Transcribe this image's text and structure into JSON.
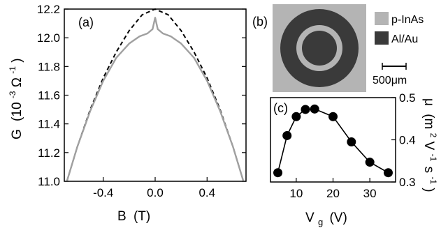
{
  "chart_data": [
    {
      "panel": "(a)",
      "type": "line",
      "xlabel": {
        "main": "B",
        "unit": "(T)"
      },
      "ylabel": {
        "main": "G",
        "unit_pre": "(10",
        "unit_exp": "-3",
        "unit_mid": "Ω",
        "unit_exp2": "-1",
        "unit_post": ")"
      },
      "xlim": [
        -0.7,
        0.7
      ],
      "ylim": [
        11.0,
        12.2
      ],
      "xticks": [
        -0.4,
        0,
        0.4
      ],
      "xtick_labels": [
        "-0.4",
        "0.0",
        "0.4"
      ],
      "yticks": [
        11.0,
        11.2,
        11.4,
        11.6,
        11.8,
        12.0,
        12.2
      ],
      "ytick_labels": [
        "11.0",
        "11.2",
        "11.4",
        "11.6",
        "11.8",
        "12.0",
        "12.2"
      ],
      "series": [
        {
          "style": "dashed",
          "color": "#000000",
          "x": [
            -0.68,
            -0.6,
            -0.5,
            -0.4,
            -0.3,
            -0.2,
            -0.1,
            0.0,
            0.1,
            0.2,
            0.3,
            0.4,
            0.5,
            0.6,
            0.68
          ],
          "y": [
            11.0,
            11.24,
            11.5,
            11.72,
            11.9,
            12.05,
            12.16,
            12.2,
            12.16,
            12.05,
            11.9,
            11.72,
            11.5,
            11.24,
            11.0
          ]
        },
        {
          "style": "solid",
          "color": "#a0a0a0",
          "x": [
            -0.68,
            -0.6,
            -0.5,
            -0.4,
            -0.3,
            -0.2,
            -0.12,
            -0.06,
            -0.02,
            0.0,
            0.02,
            0.06,
            0.12,
            0.2,
            0.3,
            0.4,
            0.5,
            0.6,
            0.68
          ],
          "y": [
            11.0,
            11.24,
            11.49,
            11.7,
            11.86,
            11.96,
            12.01,
            12.03,
            12.06,
            12.14,
            12.06,
            12.03,
            12.01,
            11.96,
            11.86,
            11.7,
            11.49,
            11.24,
            11.0
          ]
        }
      ]
    },
    {
      "panel": "(c)",
      "type": "scatter",
      "xlabel": {
        "main": "V",
        "sub": "g",
        "unit": "(V)"
      },
      "ylabel": {
        "main": "μ",
        "unit_pre": "(m",
        "unit_exp": "2",
        "unit_mid": "V",
        "unit_exp2": "-1",
        "unit_mid2": "s",
        "unit_exp3": "-1",
        "unit_post": ")"
      },
      "xlim": [
        3,
        37
      ],
      "ylim": [
        0.3,
        0.5
      ],
      "xticks": [
        10,
        20,
        30
      ],
      "xtick_labels": [
        "10",
        "20",
        "30"
      ],
      "yticks": [
        0.3,
        0.4,
        0.5
      ],
      "ytick_labels": [
        "0.3",
        "0.4",
        "0.5"
      ],
      "series": [
        {
          "style": "line-markers",
          "color": "#000000",
          "x": [
            5,
            7.5,
            10,
            12.5,
            15,
            20,
            25,
            30,
            35
          ],
          "y": [
            0.322,
            0.41,
            0.455,
            0.472,
            0.473,
            0.455,
            0.395,
            0.347,
            0.322
          ]
        }
      ]
    }
  ],
  "panel_b": {
    "label": "(b)",
    "legend": [
      {
        "label": "p-InAs",
        "color": "#b4b4b4"
      },
      {
        "label": "Al/Au",
        "color": "#3a3a3a"
      }
    ],
    "scale_bar": "500μm"
  }
}
